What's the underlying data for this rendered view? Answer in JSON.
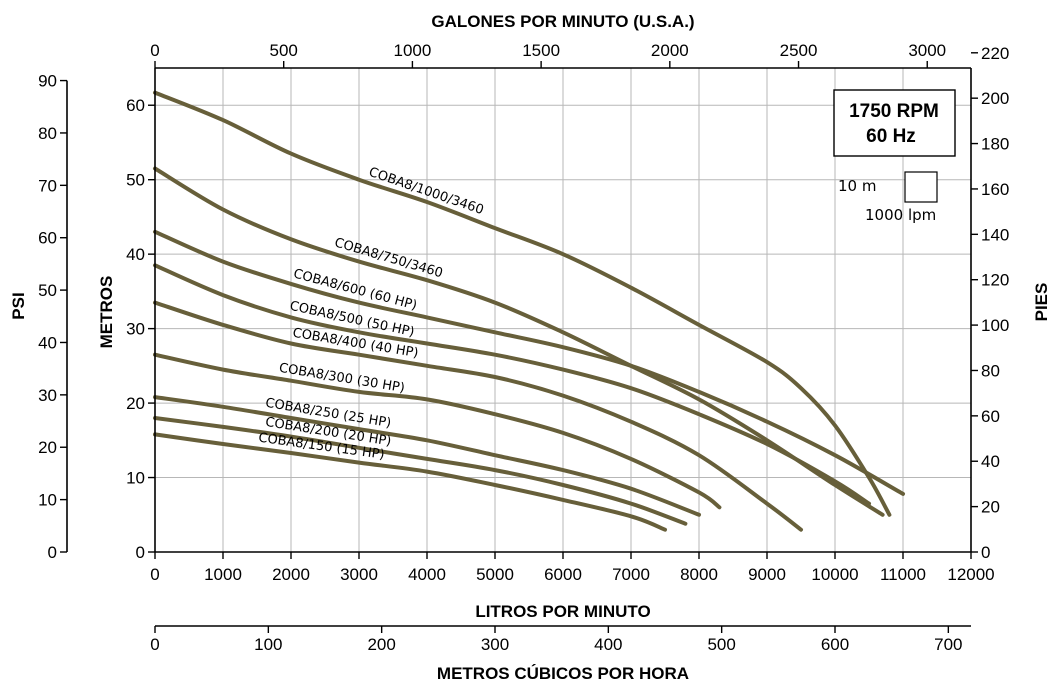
{
  "chart_data": {
    "type": "line",
    "top_axis": {
      "title": "GALONES POR MINUTO (U.S.A.)",
      "ticks": [
        0,
        500,
        1000,
        1500,
        2000,
        2500,
        3000
      ],
      "range": [
        0,
        3170
      ]
    },
    "bottom_axis": {
      "title": "LITROS POR MINUTO",
      "ticks": [
        0,
        1000,
        2000,
        3000,
        4000,
        5000,
        6000,
        7000,
        8000,
        9000,
        10000,
        11000,
        12000
      ],
      "range": [
        0,
        12000
      ]
    },
    "lower_axis": {
      "title": "METROS CÚBICOS POR HORA",
      "ticks": [
        0,
        100,
        200,
        300,
        400,
        500,
        600,
        700
      ],
      "range": [
        0,
        720
      ]
    },
    "left_axis": {
      "title": "METROS",
      "ticks": [
        0,
        10,
        20,
        30,
        40,
        50,
        60
      ],
      "range": [
        0,
        65
      ]
    },
    "far_left_axis": {
      "title": "PSI",
      "ticks": [
        0,
        10,
        20,
        30,
        40,
        50,
        60,
        70,
        80,
        90
      ],
      "range": [
        0,
        92.4
      ]
    },
    "right_axis": {
      "title": "PIES",
      "ticks": [
        0,
        20,
        40,
        60,
        80,
        100,
        120,
        140,
        160,
        180,
        200,
        220
      ],
      "range": [
        0,
        213.3
      ]
    },
    "grid": true,
    "info_box": {
      "rpm": "1750 RPM",
      "hz": "60 Hz",
      "scale_v": "10 m",
      "scale_h": "1000 lpm"
    },
    "series": [
      {
        "name": "COBA8/1000/3460",
        "x": [
          0,
          1000,
          2000,
          3000,
          4000,
          5000,
          6000,
          7000,
          8000,
          9000,
          9500,
          10000,
          10500,
          10800
        ],
        "y": [
          61.7,
          58.0,
          53.5,
          50.0,
          47.0,
          43.5,
          40.0,
          35.5,
          30.5,
          25.5,
          22.0,
          17.0,
          10.0,
          5.0
        ]
      },
      {
        "name": "COBA8/750/3460",
        "x": [
          0,
          1000,
          2000,
          3000,
          4000,
          5000,
          6000,
          7000,
          8000,
          9000,
          10000,
          10700
        ],
        "y": [
          51.5,
          46.0,
          42.0,
          39.0,
          36.5,
          33.5,
          29.5,
          25.0,
          20.5,
          15.0,
          9.0,
          5.0
        ]
      },
      {
        "name": "COBA8/600 (60 HP)",
        "x": [
          0,
          1000,
          2000,
          3000,
          4000,
          5000,
          6000,
          7000,
          8000,
          9000,
          10000,
          11000
        ],
        "y": [
          43.0,
          39.0,
          36.0,
          33.5,
          31.5,
          29.5,
          27.5,
          25.0,
          21.5,
          17.5,
          13.0,
          7.8
        ]
      },
      {
        "name": "COBA8/500 (50 HP)",
        "x": [
          0,
          1000,
          2000,
          3000,
          4000,
          5000,
          6000,
          7000,
          8000,
          9000,
          10000,
          10500
        ],
        "y": [
          38.5,
          34.5,
          31.5,
          29.5,
          28.0,
          26.5,
          24.5,
          22.0,
          18.5,
          14.5,
          9.5,
          6.5
        ]
      },
      {
        "name": "COBA8/400 (40 HP)",
        "x": [
          0,
          1000,
          2000,
          3000,
          4000,
          5000,
          6000,
          7000,
          8000,
          9000,
          9500
        ],
        "y": [
          33.5,
          30.5,
          28.0,
          26.5,
          25.0,
          23.5,
          21.0,
          17.5,
          13.0,
          6.5,
          3.0
        ]
      },
      {
        "name": "COBA8/300 (30 HP)",
        "x": [
          0,
          1000,
          2000,
          3000,
          4000,
          5000,
          6000,
          7000,
          8000,
          8300
        ],
        "y": [
          26.5,
          24.5,
          23.0,
          21.5,
          20.5,
          18.5,
          16.0,
          12.5,
          8.0,
          6.0
        ]
      },
      {
        "name": "COBA8/250 (25 HP)",
        "x": [
          0,
          1000,
          2000,
          3000,
          4000,
          5000,
          6000,
          7000,
          8000
        ],
        "y": [
          20.8,
          19.5,
          18.0,
          16.5,
          15.0,
          13.0,
          11.0,
          8.5,
          5.0
        ]
      },
      {
        "name": "COBA8/200 (20 HP)",
        "x": [
          0,
          1000,
          2000,
          3000,
          4000,
          5000,
          6000,
          7000,
          7800
        ],
        "y": [
          18.0,
          16.8,
          15.5,
          14.0,
          12.5,
          11.0,
          9.0,
          6.5,
          3.8
        ]
      },
      {
        "name": "COBA8/150 (15 HP)",
        "x": [
          0,
          1000,
          2000,
          3000,
          4000,
          5000,
          6000,
          7000,
          7500
        ],
        "y": [
          15.8,
          14.5,
          13.3,
          12.0,
          10.8,
          9.0,
          7.0,
          4.8,
          3.0
        ]
      }
    ]
  }
}
